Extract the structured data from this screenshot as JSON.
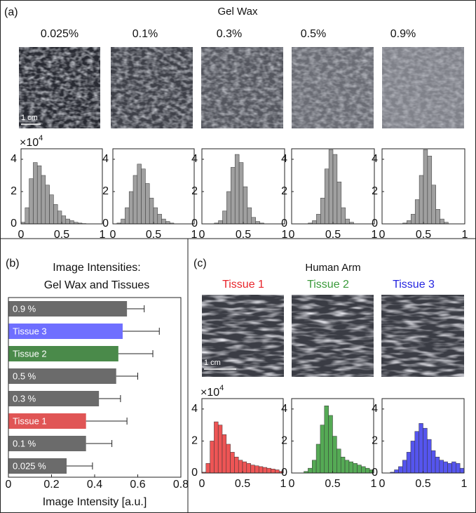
{
  "figure": {
    "panel_labels": [
      "(a)",
      "(b)",
      "(c)"
    ],
    "gel_wax_title": "Gel Wax",
    "gel_wax_samples": [
      "0.025%",
      "0.1%",
      "0.3%",
      "0.5%",
      "0.9%"
    ],
    "human_arm_title": "Human Arm",
    "tissues": [
      {
        "name": "Tissue 1",
        "color": "#e8242a"
      },
      {
        "name": "Tissue 2",
        "color": "#3a9a3a"
      },
      {
        "name": "Tissue 3",
        "color": "#2424e0"
      }
    ],
    "scale_bar": "1 cm"
  },
  "chart_data": [
    {
      "type": "histogram",
      "bins": [
        0,
        0.05,
        0.1,
        0.15,
        0.2,
        0.25,
        0.3,
        0.35,
        0.4,
        0.45,
        0.5,
        0.55,
        0.6,
        0.65,
        0.7,
        0.75,
        0.8,
        0.85,
        0.9,
        0.95,
        1
      ],
      "counts": [
        0.1,
        1.0,
        2.8,
        3.8,
        3.6,
        3.0,
        2.4,
        1.8,
        1.2,
        0.8,
        0.5,
        0.3,
        0.2,
        0.1,
        0.05,
        0.02,
        0,
        0,
        0,
        0
      ],
      "color": "#a0a0a0",
      "xlim": [
        0,
        1
      ],
      "xticks": [
        0,
        0.5,
        1
      ],
      "ylim": [
        0,
        4.65
      ],
      "yticks": [
        0,
        2,
        4
      ],
      "multiplier": {
        "base": "×10",
        "exponent": "4"
      }
    },
    {
      "type": "histogram",
      "bins": [
        0,
        0.05,
        0.1,
        0.15,
        0.2,
        0.25,
        0.3,
        0.35,
        0.4,
        0.45,
        0.5,
        0.55,
        0.6,
        0.65,
        0.7,
        0.75,
        0.8,
        0.85,
        0.9,
        0.95,
        1
      ],
      "counts": [
        0,
        0.05,
        0.3,
        1.0,
        2.0,
        3.0,
        3.7,
        3.4,
        2.5,
        1.6,
        1.0,
        0.6,
        0.3,
        0.15,
        0.05,
        0,
        0,
        0,
        0,
        0
      ],
      "color": "#a0a0a0",
      "xlim": [
        0,
        1
      ],
      "xticks": [
        0,
        0.5,
        1
      ],
      "ylim": [
        0,
        4.65
      ],
      "yticks": [
        0,
        2,
        4
      ]
    },
    {
      "type": "histogram",
      "bins": [
        0,
        0.05,
        0.1,
        0.15,
        0.2,
        0.25,
        0.3,
        0.35,
        0.4,
        0.45,
        0.5,
        0.55,
        0.6,
        0.65,
        0.7,
        0.75,
        0.8,
        0.85,
        0.9,
        0.95,
        1
      ],
      "counts": [
        0,
        0,
        0,
        0.05,
        0.2,
        0.8,
        2.0,
        3.5,
        4.3,
        3.8,
        2.3,
        1.0,
        0.4,
        0.15,
        0.05,
        0,
        0,
        0,
        0,
        0
      ],
      "color": "#a0a0a0",
      "xlim": [
        0,
        1
      ],
      "xticks": [
        0,
        0.5,
        1
      ],
      "ylim": [
        0,
        4.65
      ],
      "yticks": [
        0,
        2,
        4
      ]
    },
    {
      "type": "histogram",
      "bins": [
        0,
        0.05,
        0.1,
        0.15,
        0.2,
        0.25,
        0.3,
        0.35,
        0.4,
        0.45,
        0.5,
        0.55,
        0.6,
        0.65,
        0.7,
        0.75,
        0.8,
        0.85,
        0.9,
        0.95,
        1
      ],
      "counts": [
        0,
        0,
        0,
        0,
        0.05,
        0.2,
        0.6,
        1.6,
        3.4,
        4.6,
        4.3,
        2.6,
        1.0,
        0.3,
        0.1,
        0,
        0,
        0,
        0,
        0
      ],
      "color": "#a0a0a0",
      "xlim": [
        0,
        1
      ],
      "xticks": [
        0,
        0.5,
        1
      ],
      "ylim": [
        0,
        4.65
      ],
      "yticks": [
        0,
        2,
        4
      ]
    },
    {
      "type": "histogram",
      "bins": [
        0,
        0.05,
        0.1,
        0.15,
        0.2,
        0.25,
        0.3,
        0.35,
        0.4,
        0.45,
        0.5,
        0.55,
        0.6,
        0.65,
        0.7,
        0.75,
        0.8,
        0.85,
        0.9,
        0.95,
        1
      ],
      "counts": [
        0,
        0,
        0,
        0,
        0,
        0.05,
        0.2,
        0.6,
        1.5,
        3.0,
        4.6,
        4.2,
        2.4,
        0.9,
        0.3,
        0.1,
        0,
        0,
        0,
        0
      ],
      "color": "#a0a0a0",
      "xlim": [
        0,
        1
      ],
      "xticks": [
        0,
        0.5,
        1
      ],
      "ylim": [
        0,
        4.65
      ],
      "yticks": [
        0,
        2,
        4
      ]
    },
    {
      "type": "histogram",
      "bins": [
        0,
        0.05,
        0.1,
        0.15,
        0.2,
        0.25,
        0.3,
        0.35,
        0.4,
        0.45,
        0.5,
        0.55,
        0.6,
        0.65,
        0.7,
        0.75,
        0.8,
        0.85,
        0.9,
        0.95,
        1
      ],
      "counts": [
        0.05,
        0.6,
        2.0,
        3.2,
        3.0,
        2.4,
        1.8,
        1.3,
        1.0,
        0.8,
        0.7,
        0.6,
        0.5,
        0.45,
        0.4,
        0.35,
        0.3,
        0.25,
        0.2,
        0.1
      ],
      "color": "#ee5555",
      "xlim": [
        0,
        1
      ],
      "xticks": [
        0,
        0.5,
        1
      ],
      "ylim": [
        0,
        4.65
      ],
      "yticks": [
        0,
        2,
        4
      ],
      "multiplier": {
        "base": "×10",
        "exponent": "4"
      }
    },
    {
      "type": "histogram",
      "bins": [
        0,
        0.05,
        0.1,
        0.15,
        0.2,
        0.25,
        0.3,
        0.35,
        0.4,
        0.45,
        0.5,
        0.55,
        0.6,
        0.65,
        0.7,
        0.75,
        0.8,
        0.85,
        0.9,
        0.95,
        1
      ],
      "counts": [
        0,
        0,
        0,
        0.1,
        0.3,
        0.8,
        1.8,
        3.0,
        4.2,
        3.6,
        2.3,
        1.5,
        1.0,
        0.8,
        0.7,
        0.6,
        0.5,
        0.4,
        0.3,
        0.2
      ],
      "color": "#55aa55",
      "xlim": [
        0,
        1
      ],
      "xticks": [
        0,
        0.5,
        1
      ],
      "ylim": [
        0,
        4.65
      ],
      "yticks": [
        0,
        2,
        4
      ]
    },
    {
      "type": "histogram",
      "bins": [
        0,
        0.05,
        0.1,
        0.15,
        0.2,
        0.25,
        0.3,
        0.35,
        0.4,
        0.45,
        0.5,
        0.55,
        0.6,
        0.65,
        0.7,
        0.75,
        0.8,
        0.85,
        0.9,
        0.95,
        1
      ],
      "counts": [
        0,
        0,
        0.05,
        0.2,
        0.4,
        0.8,
        1.3,
        2.0,
        2.6,
        3.1,
        2.8,
        2.1,
        1.4,
        1.0,
        0.8,
        0.7,
        0.6,
        0.7,
        0.6,
        0.3
      ],
      "color": "#5555ee",
      "xlim": [
        0,
        1
      ],
      "xticks": [
        0,
        0.5,
        1
      ],
      "ylim": [
        0,
        4.65
      ],
      "yticks": [
        0,
        2,
        4
      ]
    },
    {
      "type": "hbar",
      "title": [
        "Image Intensities:",
        "Gel Wax and Tissues"
      ],
      "categories": [
        "0.9 %",
        "Tissue 3",
        "Tissue 2",
        "0.5 %",
        "0.3 %",
        "Tissue 1",
        "0.1 %",
        "0.025 %"
      ],
      "values": [
        0.55,
        0.53,
        0.51,
        0.5,
        0.42,
        0.36,
        0.36,
        0.27
      ],
      "errors": [
        0.08,
        0.17,
        0.16,
        0.1,
        0.1,
        0.19,
        0.12,
        0.12
      ],
      "colors": [
        "#6b6b6b",
        "#6f6fff",
        "#4a8a4a",
        "#6b6b6b",
        "#6b6b6b",
        "#e05555",
        "#6b6b6b",
        "#6b6b6b"
      ],
      "xlim": [
        0,
        0.8
      ],
      "xticks": [
        0,
        0.2,
        0.4,
        0.6,
        0.8
      ],
      "xlabel": "Image Intensity [a.u.]"
    }
  ]
}
